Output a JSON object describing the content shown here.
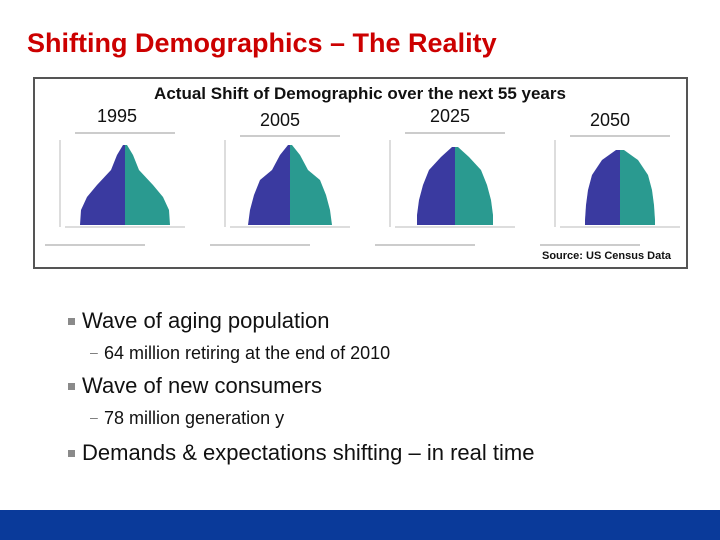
{
  "title": "Shifting Demographics – The Reality",
  "figure": {
    "caption": "Actual Shift of Demographic over the next 55 years",
    "years": [
      "1995",
      "2005",
      "2025",
      "2050"
    ],
    "source": "Source: US Census Data"
  },
  "bullets": [
    {
      "text": "Wave of aging population",
      "sub": [
        "64 million retiring at the end of 2010"
      ]
    },
    {
      "text": "Wave of new consumers",
      "sub": [
        "78 million generation y"
      ]
    },
    {
      "text": "Demands & expectations shifting – in real time",
      "sub": []
    }
  ]
}
